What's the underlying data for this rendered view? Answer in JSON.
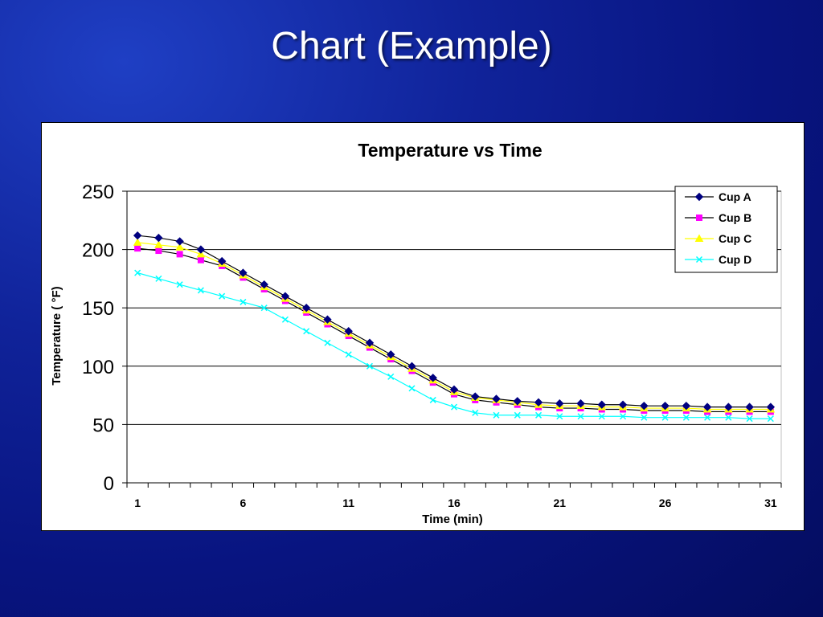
{
  "slide": {
    "title": "Chart (Example)"
  },
  "chart_data": {
    "type": "line",
    "title": "Temperature vs Time",
    "xlabel": "Time (min)",
    "ylabel": "Temperature ( °F)",
    "ylim": [
      0,
      250
    ],
    "yticks": [
      0,
      50,
      100,
      150,
      200,
      250
    ],
    "xticks": [
      1,
      6,
      11,
      16,
      21,
      26,
      31
    ],
    "x": [
      1,
      2,
      3,
      4,
      5,
      6,
      7,
      8,
      9,
      10,
      11,
      12,
      13,
      14,
      15,
      16,
      17,
      18,
      19,
      20,
      21,
      22,
      23,
      24,
      25,
      26,
      27,
      28,
      29,
      30,
      31
    ],
    "grid": true,
    "legend": "top-right",
    "series": [
      {
        "name": "Cup A",
        "color": "#000080",
        "marker": "diamond",
        "values": [
          212,
          210,
          207,
          200,
          190,
          180,
          170,
          160,
          150,
          140,
          130,
          120,
          110,
          100,
          90,
          80,
          74,
          72,
          70,
          69,
          68,
          68,
          67,
          67,
          66,
          66,
          66,
          65,
          65,
          65,
          65
        ]
      },
      {
        "name": "Cup B",
        "color": "#ff00ff",
        "marker": "square",
        "values": [
          201,
          199,
          196,
          191,
          186,
          176,
          166,
          156,
          146,
          136,
          126,
          116,
          106,
          96,
          86,
          76,
          71,
          69,
          67,
          65,
          64,
          64,
          63,
          63,
          62,
          62,
          62,
          61,
          61,
          61,
          61
        ]
      },
      {
        "name": "Cup C",
        "color": "#ffff00",
        "marker": "triangle",
        "values": [
          206,
          204,
          202,
          196,
          188,
          178,
          168,
          158,
          148,
          138,
          128,
          118,
          108,
          98,
          88,
          78,
          73,
          71,
          69,
          67,
          66,
          66,
          65,
          65,
          64,
          64,
          64,
          63,
          63,
          63,
          63
        ]
      },
      {
        "name": "Cup D",
        "color": "#00ffff",
        "marker": "x",
        "values": [
          180,
          175,
          170,
          165,
          160,
          155,
          150,
          140,
          130,
          120,
          110,
          100,
          91,
          81,
          71,
          65,
          60,
          58,
          58,
          58,
          57,
          57,
          57,
          57,
          56,
          56,
          56,
          56,
          56,
          55,
          55
        ]
      }
    ]
  }
}
